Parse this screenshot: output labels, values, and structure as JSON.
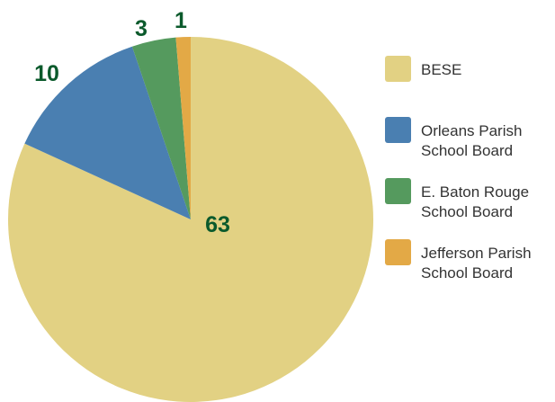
{
  "chart_data": {
    "type": "pie",
    "start_angle_deg": 0,
    "direction": "clockwise",
    "legend_position": "right",
    "label_color": "#0b5a2c",
    "slices": [
      {
        "label": [
          "BESE"
        ],
        "value": 63,
        "value_label": "63",
        "color": "#e2d183"
      },
      {
        "label": [
          "Orleans Parish",
          "School Board"
        ],
        "value": 10,
        "value_label": "10",
        "color": "#4a7fb1"
      },
      {
        "label": [
          "E. Baton Rouge",
          "School Board"
        ],
        "value": 3,
        "value_label": "3",
        "color": "#559a5e"
      },
      {
        "label": [
          "Jefferson Parish",
          "School Board"
        ],
        "value": 1,
        "value_label": "1",
        "color": "#e3a946"
      }
    ]
  }
}
